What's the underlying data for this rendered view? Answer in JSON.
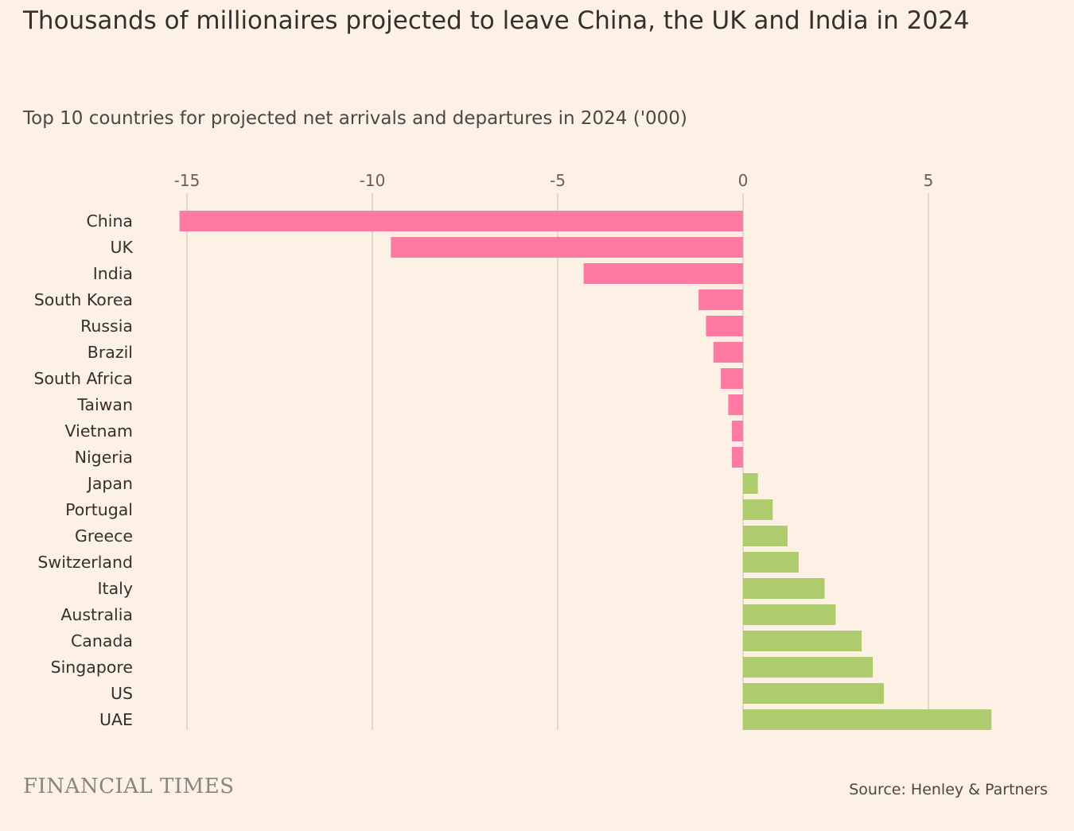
{
  "chart_data": {
    "type": "bar",
    "orientation": "horizontal",
    "title": "Thousands of millionaires projected to leave China, the UK and India in 2024",
    "subtitle": "Top 10 countries for projected net arrivals and departures in 2024 ('000)",
    "categories": [
      "China",
      "UK",
      "India",
      "South Korea",
      "Russia",
      "Brazil",
      "South Africa",
      "Taiwan",
      "Vietnam",
      "Nigeria",
      "Japan",
      "Portugal",
      "Greece",
      "Switzerland",
      "Italy",
      "Australia",
      "Canada",
      "Singapore",
      "US",
      "UAE"
    ],
    "values": [
      -15.2,
      -9.5,
      -4.3,
      -1.2,
      -1.0,
      -0.8,
      -0.6,
      -0.4,
      -0.3,
      -0.3,
      0.4,
      0.8,
      1.2,
      1.5,
      2.2,
      2.5,
      3.2,
      3.5,
      3.8,
      6.7
    ],
    "xlim": [
      -15.2,
      6.7
    ],
    "ticks": [
      -15,
      -10,
      -5,
      0,
      5
    ],
    "tick_labels": [
      "-15",
      "-10",
      "-5",
      "0",
      "5"
    ],
    "xlabel": "",
    "ylabel": "",
    "grid": true,
    "colors": {
      "negative": "#ff7aa2",
      "positive": "#aecb6e",
      "grid": "#cfc6bd",
      "background": "#fdf1e6"
    }
  },
  "footer": {
    "brand": "FINANCIAL TIMES",
    "source": "Source: Henley & Partners"
  }
}
